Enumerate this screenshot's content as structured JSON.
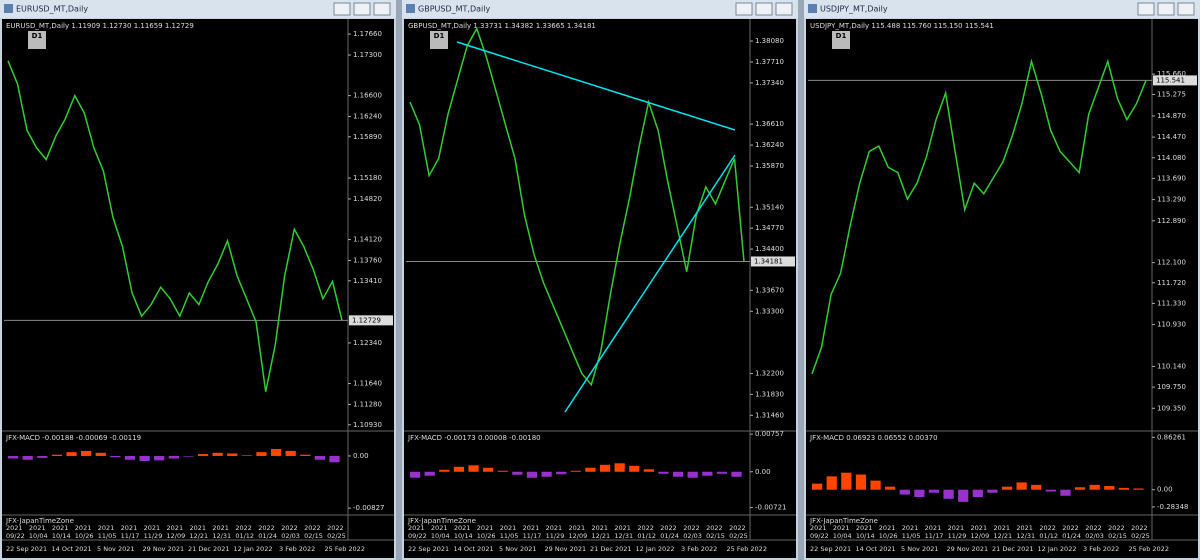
{
  "windows": [
    {
      "title": "EURUSD_MT,Daily",
      "header": "EURUSD_MT,Daily 1.11909 1.12730 1.11659 1.12729",
      "period": "D1",
      "ylim": [
        1.1084,
        1.1792
      ],
      "yticks": [
        {
          "value": 1.1766,
          "label": "1.17660"
        },
        {
          "value": 1.173,
          "label": "1.17300"
        },
        {
          "value": 1.166,
          "label": "1.16600"
        },
        {
          "value": 1.1624,
          "label": "1.16240"
        },
        {
          "value": 1.1589,
          "label": "1.15890"
        },
        {
          "value": 1.1518,
          "label": "1.15180"
        },
        {
          "value": 1.1482,
          "label": "1.14820"
        },
        {
          "value": 1.1412,
          "label": "1.14120"
        },
        {
          "value": 1.1376,
          "label": "1.13760"
        },
        {
          "value": 1.1341,
          "label": "1.13410"
        },
        {
          "value": 1.1234,
          "label": "1.12340"
        },
        {
          "value": 1.1164,
          "label": "1.11640"
        },
        {
          "value": 1.1128,
          "label": "1.11280"
        },
        {
          "value": 1.1093,
          "label": "1.10930"
        }
      ],
      "last": {
        "value": 1.12729,
        "label": "1.12729"
      },
      "closes": [
        1.172,
        1.168,
        1.16,
        1.157,
        1.155,
        1.159,
        1.162,
        1.166,
        1.163,
        1.157,
        1.153,
        1.145,
        1.14,
        1.132,
        1.128,
        1.13,
        1.133,
        1.131,
        1.128,
        1.132,
        1.13,
        1.134,
        1.137,
        1.141,
        1.135,
        1.131,
        1.127,
        1.115,
        1.123,
        1.135,
        1.143,
        1.14,
        1.136,
        1.131,
        1.134,
        1.12729
      ],
      "macd": {
        "header": "JFX-MACD -0.00188 -0.00069 -0.00119",
        "ylim": [
          -0.0092,
          0.0038
        ],
        "yticks": [
          {
            "value": 0,
            "label": "0.00"
          },
          {
            "value": -0.00827,
            "label": "-0.00827"
          }
        ],
        "histogram": [
          -0.0004,
          -0.0006,
          -0.0003,
          0.0002,
          0.0006,
          0.0008,
          0.0005,
          -0.0002,
          -0.0006,
          -0.0008,
          -0.0007,
          -0.0004,
          -0.0001,
          0.0003,
          0.0005,
          0.0004,
          0.0001,
          0.0006,
          0.0011,
          0.0008,
          0.0002,
          -0.0006,
          -0.001
        ]
      }
    },
    {
      "title": "GBPUSD_MT,Daily",
      "header": "GBPUSD_MT,Daily 1.33731 1.34382 1.33665 1.34181",
      "period": "D1",
      "ylim": [
        1.312,
        1.3847
      ],
      "yticks": [
        {
          "value": 1.3808,
          "label": "1.38080"
        },
        {
          "value": 1.3771,
          "label": "1.37710"
        },
        {
          "value": 1.3734,
          "label": "1.37340"
        },
        {
          "value": 1.3661,
          "label": "1.36610"
        },
        {
          "value": 1.3624,
          "label": "1.36240"
        },
        {
          "value": 1.3587,
          "label": "1.35870"
        },
        {
          "value": 1.3514,
          "label": "1.35140"
        },
        {
          "value": 1.3477,
          "label": "1.34770"
        },
        {
          "value": 1.344,
          "label": "1.34400"
        },
        {
          "value": 1.3367,
          "label": "1.33670"
        },
        {
          "value": 1.333,
          "label": "1.33300"
        },
        {
          "value": 1.322,
          "label": "1.32200"
        },
        {
          "value": 1.3183,
          "label": "1.31830"
        },
        {
          "value": 1.3146,
          "label": "1.31460"
        }
      ],
      "last": {
        "value": 1.34181,
        "label": "1.34181"
      },
      "closes": [
        1.37,
        1.366,
        1.357,
        1.36,
        1.368,
        1.374,
        1.38,
        1.383,
        1.378,
        1.372,
        1.366,
        1.36,
        1.35,
        1.343,
        1.338,
        1.334,
        1.33,
        1.326,
        1.322,
        1.32,
        1.326,
        1.336,
        1.345,
        1.353,
        1.362,
        1.37,
        1.365,
        1.356,
        1.348,
        1.34,
        1.35,
        1.355,
        1.352,
        1.356,
        1.36,
        1.34181
      ],
      "macd": {
        "header": "JFX-MACD -0.00173 0.00008 -0.00180",
        "ylim": [
          -0.0085,
          0.008
        ],
        "yticks": [
          {
            "value": 0.00757,
            "label": "0.00757"
          },
          {
            "value": 0,
            "label": "0.00"
          },
          {
            "value": -0.00721,
            "label": "-0.00721"
          }
        ],
        "histogram": [
          -0.0012,
          -0.0008,
          0.0004,
          0.001,
          0.0013,
          0.0008,
          0.0002,
          -0.0006,
          -0.0012,
          -0.001,
          -0.0005,
          0.0002,
          0.0008,
          0.0014,
          0.0017,
          0.0012,
          0.0005,
          -0.0004,
          -0.001,
          -0.0012,
          -0.0008,
          -0.0004,
          -0.001
        ]
      }
    },
    {
      "title": "USDJPY_MT,Daily",
      "header": "USDJPY_MT,Daily 115.488 115.760 115.150 115.541",
      "period": "D1",
      "ylim": [
        108.94,
        116.7
      ],
      "yticks": [
        {
          "value": 115.66,
          "label": "115.660"
        },
        {
          "value": 115.275,
          "label": "115.275"
        },
        {
          "value": 114.87,
          "label": "114.870"
        },
        {
          "value": 114.47,
          "label": "114.470"
        },
        {
          "value": 114.08,
          "label": "114.080"
        },
        {
          "value": 113.69,
          "label": "113.690"
        },
        {
          "value": 113.29,
          "label": "113.290"
        },
        {
          "value": 112.89,
          "label": "112.890"
        },
        {
          "value": 112.1,
          "label": "112.100"
        },
        {
          "value": 111.72,
          "label": "111.720"
        },
        {
          "value": 111.33,
          "label": "111.330"
        },
        {
          "value": 110.93,
          "label": "110.930"
        },
        {
          "value": 110.14,
          "label": "110.140"
        },
        {
          "value": 109.75,
          "label": "109.750"
        },
        {
          "value": 109.35,
          "label": "109.350"
        }
      ],
      "last": {
        "value": 115.541,
        "label": "115.541"
      },
      "closes": [
        110,
        110.5,
        111.5,
        111.9,
        112.8,
        113.6,
        114.2,
        114.3,
        113.9,
        113.8,
        113.3,
        113.6,
        114.1,
        114.8,
        115.3,
        114.2,
        113.1,
        113.6,
        113.4,
        113.7,
        114,
        114.5,
        115.1,
        115.9,
        115.3,
        114.6,
        114.2,
        114,
        113.8,
        114.9,
        115.4,
        115.9,
        115.2,
        114.8,
        115.1,
        115.541
      ],
      "macd": {
        "header": "JFX-MACD 0.06923 0.06552 0.00370",
        "ylim": [
          -0.4,
          0.95
        ],
        "yticks": [
          {
            "value": 0.86261,
            "label": "0.86261"
          },
          {
            "value": 0,
            "label": "0.00"
          },
          {
            "value": -0.28348,
            "label": "-0.28348"
          }
        ],
        "histogram": [
          0.1,
          0.22,
          0.28,
          0.25,
          0.15,
          0.05,
          -0.08,
          -0.12,
          -0.05,
          -0.15,
          -0.2,
          -0.12,
          -0.05,
          0.05,
          0.12,
          0.08,
          -0.03,
          -0.1,
          0.04,
          0.08,
          0.06,
          0.03,
          0.02
        ]
      }
    }
  ],
  "time_zone": "JFX-JapanTimeZone",
  "years": [
    "2021",
    "2021",
    "2021",
    "2021",
    "2021",
    "2021",
    "2021",
    "2021",
    "2021",
    "2021",
    "2022",
    "2022",
    "2022",
    "2022",
    "2022"
  ],
  "days": [
    "09/22",
    "10/04",
    "10/14",
    "10/26",
    "11/05",
    "11/17",
    "11/29",
    "12/09",
    "12/21",
    "12/31",
    "01/12",
    "01/24",
    "02/03",
    "02/15",
    "02/25"
  ],
  "dates": [
    "22 Sep 2021",
    "14 Oct 2021",
    "5 Nov 2021",
    "29 Nov 2021",
    "21 Dec 2021",
    "12 Jan 2022",
    "3 Feb 2022",
    "25 Feb 2022"
  ],
  "price_color": "#32cd32",
  "hist_up_color": "#ff4500",
  "hist_down_color": "#9932cc"
}
